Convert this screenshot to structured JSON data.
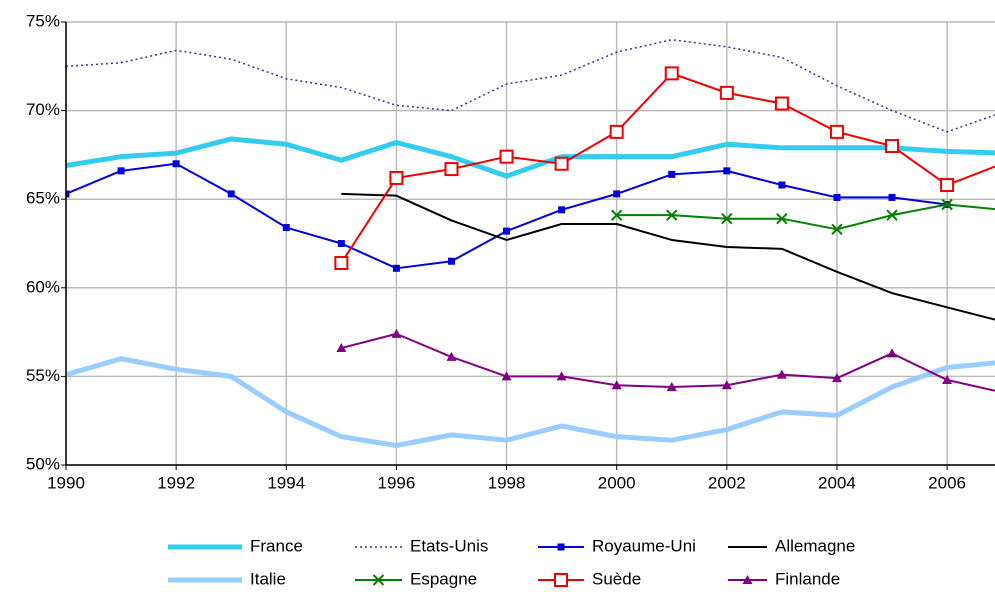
{
  "chart_data": {
    "type": "line",
    "x": [
      1990,
      1991,
      1992,
      1993,
      1994,
      1995,
      1996,
      1997,
      1998,
      1999,
      2000,
      2001,
      2002,
      2003,
      2004,
      2005,
      2006,
      2007
    ],
    "xlim": [
      1990,
      2006.87
    ],
    "xticks": [
      1990,
      1992,
      1994,
      1996,
      1998,
      2000,
      2002,
      2004,
      2006
    ],
    "ylim": [
      50,
      75
    ],
    "yticks": [
      {
        "value": 50,
        "label": "50%"
      },
      {
        "value": 55,
        "label": "55%"
      },
      {
        "value": 60,
        "label": "60%"
      },
      {
        "value": 65,
        "label": "65%"
      },
      {
        "value": 70,
        "label": "70%"
      },
      {
        "value": 75,
        "label": "75%"
      }
    ],
    "grid": true,
    "legend": "bottom",
    "series": [
      {
        "name": "France",
        "color": "#33ccee",
        "line_style": "thick",
        "marker": "none",
        "values": [
          66.9,
          67.4,
          67.6,
          68.4,
          68.1,
          67.2,
          68.2,
          67.4,
          66.3,
          67.4,
          67.4,
          67.4,
          68.1,
          67.9,
          67.9,
          67.9,
          67.7,
          67.6
        ]
      },
      {
        "name": "Etats-Unis",
        "color": "#333399",
        "line_style": "dotted",
        "marker": "none",
        "values": [
          72.5,
          72.7,
          73.4,
          72.9,
          71.8,
          71.3,
          70.3,
          70.0,
          71.5,
          72.0,
          73.3,
          74.0,
          73.6,
          73.0,
          71.4,
          70.0,
          68.8,
          69.9
        ]
      },
      {
        "name": "Royaume-Uni",
        "color": "#0000dd",
        "line_style": "solid",
        "marker": "square",
        "values": [
          65.3,
          66.6,
          67.0,
          65.3,
          63.4,
          62.5,
          61.1,
          61.5,
          63.2,
          64.4,
          65.3,
          66.4,
          66.6,
          65.8,
          65.1,
          65.1,
          64.7,
          null
        ]
      },
      {
        "name": "Allemagne",
        "color": "#000000",
        "line_style": "solid",
        "marker": "none",
        "values": [
          null,
          null,
          null,
          null,
          null,
          65.3,
          65.2,
          63.8,
          62.7,
          63.6,
          63.6,
          62.7,
          62.3,
          62.2,
          60.9,
          59.7,
          58.9,
          58.1
        ]
      },
      {
        "name": "Italie",
        "color": "#99ccff",
        "line_style": "thick",
        "marker": "none",
        "values": [
          55.1,
          56.0,
          55.4,
          55.0,
          53.0,
          51.6,
          51.1,
          51.7,
          51.4,
          52.2,
          51.6,
          51.4,
          52.0,
          53.0,
          52.8,
          54.4,
          55.5,
          55.8
        ]
      },
      {
        "name": "Espagne",
        "color": "#008000",
        "line_style": "solid",
        "marker": "x",
        "values": [
          null,
          null,
          null,
          null,
          null,
          null,
          null,
          null,
          null,
          null,
          64.1,
          64.1,
          63.9,
          63.9,
          63.3,
          64.1,
          64.7,
          64.4
        ]
      },
      {
        "name": "Suède",
        "color": "#ee0000",
        "line_style": "solid",
        "marker": "open-square",
        "values": [
          null,
          null,
          null,
          null,
          null,
          61.4,
          66.2,
          66.7,
          67.4,
          67.0,
          68.8,
          72.1,
          71.0,
          70.4,
          68.8,
          68.0,
          65.8,
          67.0
        ]
      },
      {
        "name": "Finlande",
        "color": "#800080",
        "line_style": "solid",
        "marker": "triangle",
        "values": [
          null,
          null,
          null,
          null,
          null,
          56.6,
          57.4,
          56.1,
          55.0,
          55.0,
          54.5,
          54.4,
          54.5,
          55.1,
          54.9,
          56.3,
          54.8,
          54.1
        ]
      }
    ]
  }
}
